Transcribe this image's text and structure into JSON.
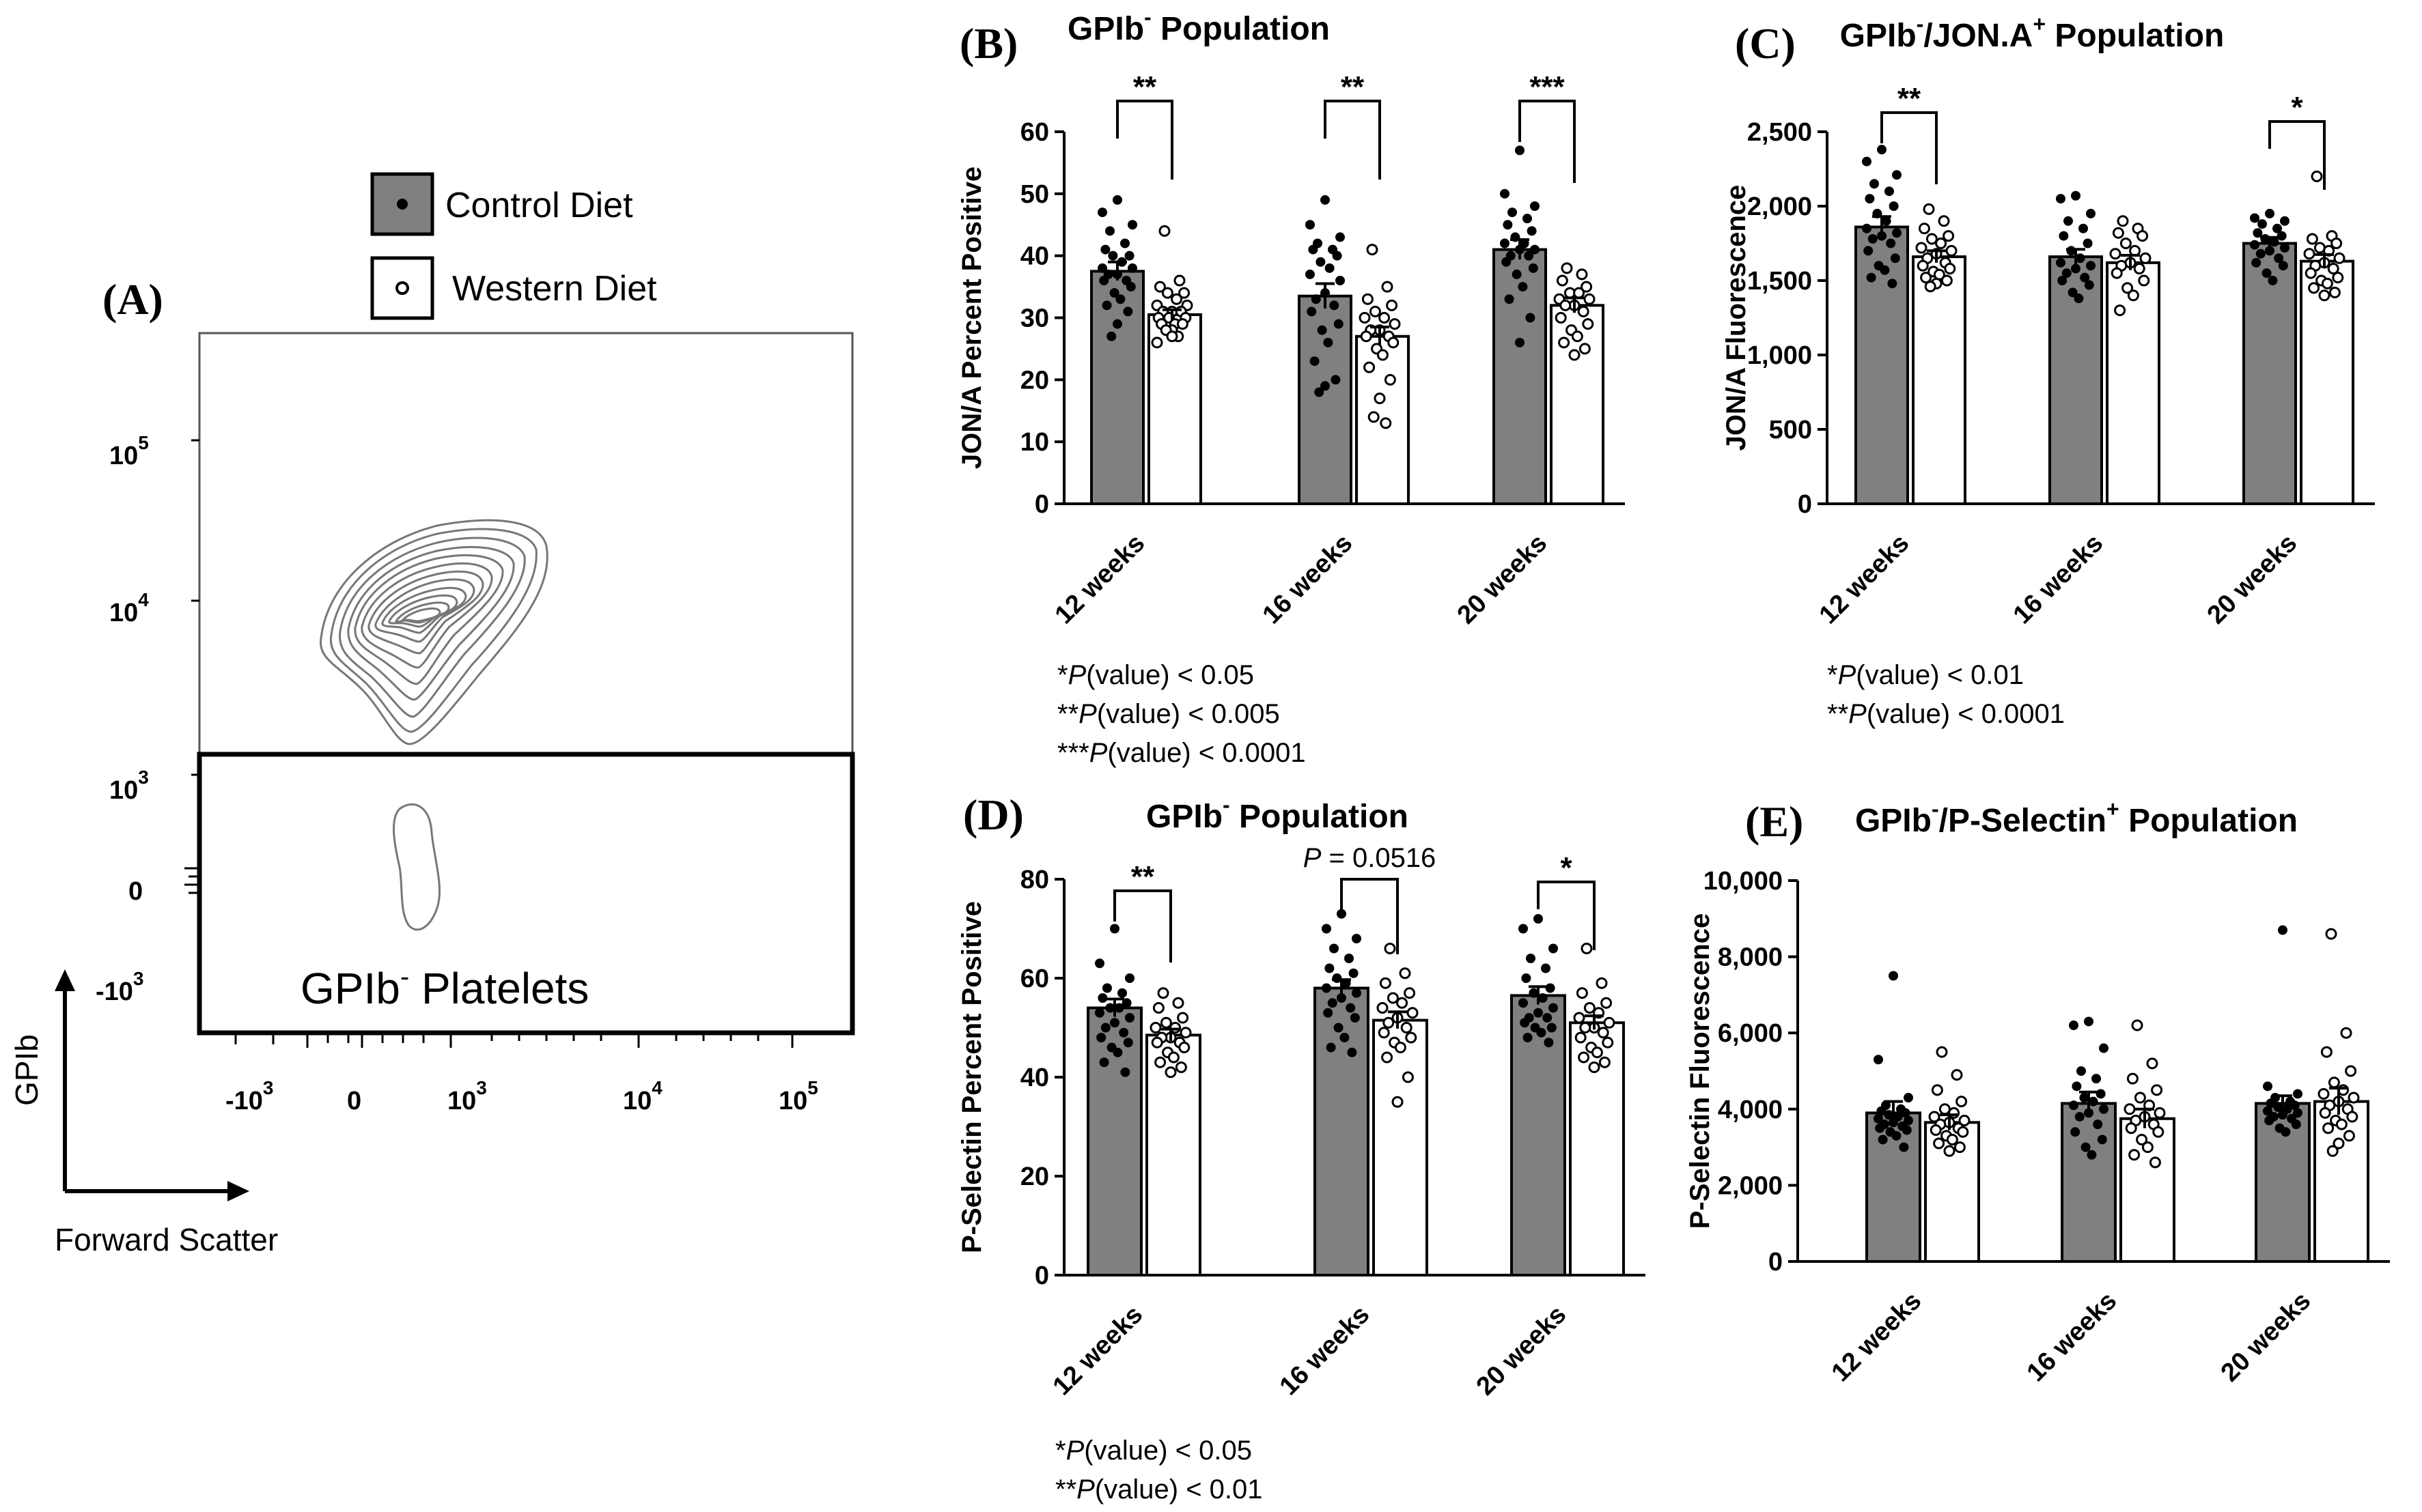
{
  "legend": {
    "control_label": "Control  Diet",
    "western_label": "Western Diet",
    "control_color": "#808080",
    "western_color": "#ffffff"
  },
  "panel_a": {
    "letter": "(A)",
    "y_axis_label": "GPIb",
    "x_axis_label": "Forward Scatter",
    "gate_label": "GPIb",
    "gate_label_sup": "-",
    "gate_label_rest": " Platelets",
    "y_ticks": [
      {
        "base": "10",
        "exp": "5"
      },
      {
        "base": "10",
        "exp": "4"
      },
      {
        "base": "10",
        "exp": "3"
      },
      {
        "base": "0",
        "exp": ""
      },
      {
        "base": "-10",
        "exp": "3"
      }
    ],
    "x_ticks": [
      {
        "base": "-10",
        "exp": "3"
      },
      {
        "base": "0",
        "exp": ""
      },
      {
        "base": "10",
        "exp": "3"
      },
      {
        "base": "10",
        "exp": "4"
      },
      {
        "base": "10",
        "exp": "5"
      }
    ]
  },
  "chart_data": [
    {
      "id": "B",
      "type": "bar",
      "letter": "(B)",
      "title_pre": "GPIb",
      "title_sup1": "-",
      "title_post": " Population",
      "ylabel": "JON/A Percent Positive",
      "ylim": [
        0,
        60
      ],
      "yticks": [
        "0",
        "10",
        "20",
        "30",
        "40",
        "50",
        "60"
      ],
      "categories": [
        "12 weeks",
        "16 weeks",
        "20 weeks"
      ],
      "series": [
        {
          "name": "Control  Diet",
          "values": [
            37.5,
            33.5,
            41.0
          ],
          "sem": [
            1.5,
            2.0,
            1.6
          ]
        },
        {
          "name": "Western Diet",
          "values": [
            30.5,
            27.0,
            32.0
          ],
          "sem": [
            0.8,
            1.5,
            1.2
          ]
        }
      ],
      "points": [
        {
          "ctrl": [
            49,
            47,
            45,
            44,
            42,
            41,
            40,
            40,
            39,
            38,
            38,
            37,
            37,
            36,
            36,
            35,
            34,
            33,
            32,
            31,
            29,
            27
          ],
          "west": [
            44,
            36,
            35,
            34,
            34,
            33,
            32,
            32,
            31,
            31,
            31,
            30,
            30,
            30,
            29,
            29,
            29,
            28,
            28,
            27,
            27,
            26
          ]
        },
        {
          "ctrl": [
            49,
            45,
            43,
            42,
            41,
            41,
            40,
            39,
            38,
            37,
            36,
            34,
            33,
            32,
            31,
            29,
            28,
            26,
            23,
            20,
            19,
            18
          ],
          "west": [
            41,
            35,
            33,
            32,
            31,
            30,
            30,
            29,
            28,
            28,
            27,
            27,
            26,
            25,
            24,
            22,
            20,
            17,
            14,
            13
          ]
        },
        {
          "ctrl": [
            57,
            50,
            48,
            47,
            46,
            45,
            44,
            43,
            42,
            42,
            41,
            41,
            40,
            40,
            39,
            38,
            37,
            35,
            33,
            30,
            26
          ],
          "west": [
            38,
            37,
            36,
            35,
            34,
            34,
            33,
            33,
            32,
            32,
            31,
            30,
            29,
            28,
            27,
            26,
            25,
            24
          ]
        }
      ],
      "significance": [
        "**",
        "**",
        "***"
      ],
      "notes": [
        {
          "stars": "*",
          "p": "P",
          "rest": "(value) < 0.05"
        },
        {
          "stars": "**",
          "p": "P",
          "rest": "(value) < 0.005"
        },
        {
          "stars": "***",
          "p": "P",
          "rest": "(value) < 0.0001"
        }
      ]
    },
    {
      "id": "C",
      "type": "bar",
      "letter": "(C)",
      "title_pre": "GPIb",
      "title_sup1": "-",
      "title_mid": "/JON.A",
      "title_sup2": "+",
      "title_post": " Population",
      "ylabel": "JON/A Fluorescence",
      "ylim": [
        0,
        2500
      ],
      "yticks": [
        "0",
        "500",
        "1,000",
        "1,500",
        "2,000",
        "2,500"
      ],
      "categories": [
        "12 weeks",
        "16 weeks",
        "20 weeks"
      ],
      "series": [
        {
          "name": "Control  Diet",
          "values": [
            1860,
            1660,
            1750
          ],
          "sem": [
            70,
            50,
            40
          ]
        },
        {
          "name": "Western Diet",
          "values": [
            1660,
            1620,
            1630
          ],
          "sem": [
            40,
            50,
            45
          ]
        }
      ],
      "points": [
        {
          "ctrl": [
            2380,
            2300,
            2210,
            2150,
            2100,
            2050,
            2000,
            1950,
            1900,
            1850,
            1820,
            1800,
            1780,
            1750,
            1700,
            1650,
            1600,
            1570,
            1520,
            1480
          ],
          "west": [
            1980,
            1900,
            1850,
            1800,
            1780,
            1750,
            1720,
            1700,
            1680,
            1650,
            1620,
            1600,
            1580,
            1560,
            1540,
            1520,
            1500,
            1480,
            1460
          ]
        },
        {
          "ctrl": [
            2070,
            2050,
            1950,
            1900,
            1850,
            1800,
            1750,
            1700,
            1650,
            1620,
            1600,
            1580,
            1550,
            1520,
            1500,
            1470,
            1420,
            1380
          ],
          "west": [
            1900,
            1850,
            1820,
            1800,
            1750,
            1700,
            1680,
            1650,
            1620,
            1600,
            1580,
            1550,
            1500,
            1450,
            1400,
            1300
          ]
        },
        {
          "ctrl": [
            1950,
            1920,
            1900,
            1880,
            1850,
            1820,
            1800,
            1780,
            1760,
            1740,
            1720,
            1700,
            1680,
            1650,
            1620,
            1600,
            1550,
            1500
          ],
          "west": [
            2200,
            1800,
            1780,
            1750,
            1720,
            1700,
            1680,
            1650,
            1620,
            1600,
            1580,
            1550,
            1520,
            1500,
            1480,
            1450,
            1420,
            1400
          ]
        }
      ],
      "significance": [
        "**",
        "",
        "*"
      ],
      "notes": [
        {
          "stars": "*",
          "p": "P",
          "rest": "(value) < 0.01"
        },
        {
          "stars": "**",
          "p": "P",
          "rest": "(value) < 0.0001"
        }
      ]
    },
    {
      "id": "D",
      "type": "bar",
      "letter": "(D)",
      "title_pre": "GPIb",
      "title_sup1": "-",
      "title_post": " Population",
      "ylabel": "P-Selectin Percent Positive",
      "ylim": [
        0,
        80
      ],
      "yticks": [
        "0",
        "20",
        "40",
        "60",
        "80"
      ],
      "categories": [
        "12 weeks",
        "16 weeks",
        "20 weeks"
      ],
      "series": [
        {
          "name": "Control  Diet",
          "values": [
            54.0,
            58.0,
            56.5
          ],
          "sem": [
            1.8,
            1.7,
            1.8
          ]
        },
        {
          "name": "Western Diet",
          "values": [
            48.5,
            51.5,
            51.0
          ],
          "sem": [
            1.2,
            1.7,
            1.4
          ]
        }
      ],
      "points": [
        {
          "ctrl": [
            70,
            63,
            60,
            58,
            57,
            56,
            55,
            54,
            54,
            53,
            52,
            51,
            50,
            49,
            48,
            47,
            46,
            45,
            43,
            41
          ],
          "west": [
            57,
            55,
            54,
            52,
            51,
            50,
            50,
            49,
            48,
            48,
            47,
            47,
            46,
            45,
            44,
            43,
            42,
            41
          ]
        },
        {
          "ctrl": [
            73,
            70,
            68,
            66,
            64,
            62,
            61,
            60,
            59,
            58,
            57,
            56,
            55,
            54,
            53,
            52,
            50,
            48,
            46,
            45
          ],
          "west": [
            66,
            61,
            59,
            57,
            56,
            55,
            54,
            53,
            52,
            51,
            50,
            49,
            48,
            47,
            46,
            44,
            40,
            35
          ]
        },
        {
          "ctrl": [
            72,
            70,
            66,
            64,
            62,
            60,
            58,
            57,
            56,
            55,
            54,
            53,
            52,
            52,
            51,
            50,
            50,
            49,
            48,
            47
          ],
          "west": [
            66,
            59,
            57,
            55,
            54,
            53,
            52,
            51,
            50,
            50,
            49,
            48,
            47,
            46,
            45,
            44,
            43,
            42
          ]
        }
      ],
      "significance": [
        "**",
        "P = 0.0516",
        "*"
      ],
      "notes": [
        {
          "stars": "*",
          "p": "P",
          "rest": "(value) < 0.05"
        },
        {
          "stars": "**",
          "p": "P",
          "rest": "(value) < 0.01"
        }
      ]
    },
    {
      "id": "E",
      "type": "bar",
      "letter": "(E)",
      "title_pre": "GPIb",
      "title_sup1": "-",
      "title_mid": "/P-Selectin",
      "title_sup2": "+",
      "title_post": " Population",
      "ylabel": "P-Selectin Fluorescence",
      "ylim": [
        0,
        10000
      ],
      "yticks": [
        "0",
        "2,000",
        "4,000",
        "6,000",
        "8,000",
        "10,000"
      ],
      "categories": [
        "12 weeks",
        "16 weeks",
        "20 weeks"
      ],
      "series": [
        {
          "name": "Control  Diet",
          "values": [
            3900,
            4150,
            4150
          ],
          "sem": [
            300,
            300,
            200
          ]
        },
        {
          "name": "Western Diet",
          "values": [
            3650,
            3750,
            4200
          ],
          "sem": [
            200,
            250,
            350
          ]
        }
      ],
      "points": [
        {
          "ctrl": [
            7500,
            5300,
            4300,
            4100,
            4000,
            3950,
            3900,
            3850,
            3800,
            3750,
            3700,
            3650,
            3600,
            3550,
            3500,
            3450,
            3400,
            3300,
            3200,
            3000
          ],
          "west": [
            5500,
            4900,
            4500,
            4200,
            4000,
            3900,
            3800,
            3700,
            3650,
            3600,
            3500,
            3450,
            3400,
            3300,
            3200,
            3100,
            3000,
            2900
          ]
        },
        {
          "ctrl": [
            6300,
            6200,
            5600,
            5000,
            4800,
            4600,
            4400,
            4300,
            4200,
            4100,
            4000,
            3900,
            3800,
            3600,
            3400,
            3200,
            3000,
            2800
          ],
          "west": [
            6200,
            5200,
            4800,
            4500,
            4300,
            4100,
            4000,
            3900,
            3800,
            3700,
            3600,
            3500,
            3400,
            3200,
            3000,
            2800,
            2600
          ]
        },
        {
          "ctrl": [
            8700,
            4600,
            4400,
            4300,
            4200,
            4150,
            4100,
            4050,
            4000,
            3950,
            3900,
            3850,
            3800,
            3750,
            3700,
            3600,
            3500,
            3400
          ],
          "west": [
            8600,
            6000,
            5500,
            5000,
            4700,
            4500,
            4400,
            4300,
            4200,
            4100,
            4000,
            3900,
            3800,
            3700,
            3600,
            3500,
            3300,
            3100,
            2900
          ]
        }
      ],
      "significance": [
        "",
        "",
        ""
      ],
      "notes": []
    }
  ]
}
